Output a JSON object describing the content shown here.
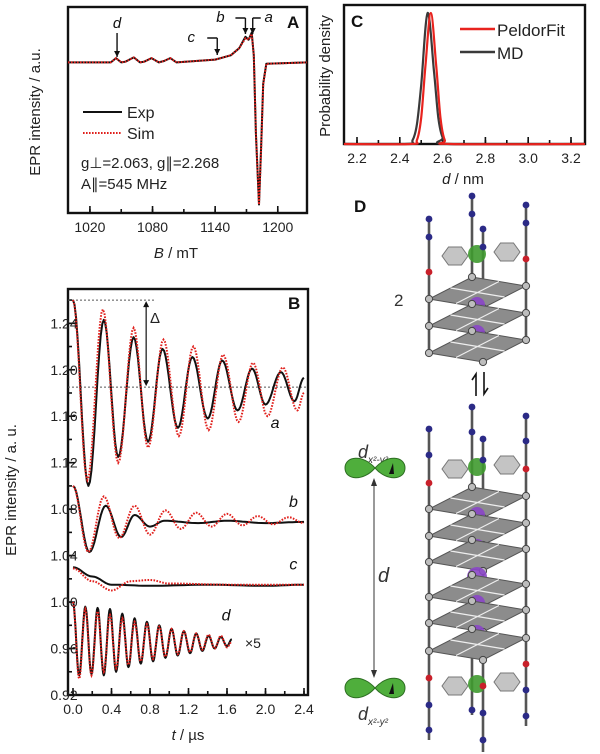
{
  "chart_data": [
    {
      "panel": "A",
      "type": "line",
      "xlabel_var": "B",
      "xlabel_unit": " / mT",
      "ylabel": "EPR intensity / a.u.",
      "xlim": [
        999,
        1228
      ],
      "ylim": [
        -1.06,
        0.39
      ],
      "xticks": [
        1020,
        1080,
        1140,
        1200
      ],
      "grid": false,
      "legend": "left",
      "legend_entries": [
        "Exp",
        "Sim"
      ],
      "annotations": [
        "g⊥=2.063, g∥=2.268",
        "A∥=545 MHz"
      ],
      "markers": [
        {
          "label": "d",
          "x": 1046
        },
        {
          "label": "c",
          "x": 1142
        },
        {
          "label": "b",
          "x": 1169
        },
        {
          "label": "a",
          "x": 1176
        }
      ],
      "series": [
        {
          "name": "Exp",
          "color": "#111111",
          "x": [
            999,
            1040,
            1045,
            1050,
            1054,
            1062,
            1068,
            1072,
            1079,
            1086,
            1091,
            1097,
            1103,
            1140,
            1155,
            1163,
            1169,
            1172,
            1175,
            1177,
            1179,
            1182,
            1184,
            1186,
            1189,
            1228
          ],
          "y": [
            0,
            0,
            0.03,
            0,
            0.005,
            0.035,
            0,
            0.005,
            0.03,
            0,
            0.01,
            0.03,
            0,
            0.02,
            0.05,
            0.1,
            0.18,
            0.16,
            0.21,
            0.05,
            -0.5,
            -1.0,
            -0.6,
            -0.15,
            -0.01,
            0
          ]
        },
        {
          "name": "Sim",
          "color": "#e0201c",
          "x": [
            999,
            1040,
            1045,
            1050,
            1054,
            1062,
            1068,
            1072,
            1079,
            1086,
            1091,
            1097,
            1103,
            1140,
            1155,
            1163,
            1169,
            1172,
            1175,
            1177,
            1179,
            1182,
            1184,
            1186,
            1189,
            1228
          ],
          "y": [
            0,
            0,
            0.03,
            0,
            0.005,
            0.035,
            0,
            0.005,
            0.03,
            0,
            0.01,
            0.03,
            0,
            0.02,
            0.05,
            0.1,
            0.17,
            0.16,
            0.2,
            0.05,
            -0.5,
            -1.0,
            -0.62,
            -0.16,
            -0.01,
            0
          ]
        }
      ]
    },
    {
      "panel": "B",
      "type": "line",
      "xlabel_var": "t",
      "xlabel_unit": " / µs",
      "ylabel": "EPR intensity / a. u.",
      "xlim": [
        0,
        2.4
      ],
      "ylim": [
        0.92,
        1.269
      ],
      "xticks": [
        0.0,
        0.4,
        0.8,
        1.2,
        1.6,
        2.0,
        2.4
      ],
      "yticks": [
        0.92,
        0.96,
        1.0,
        1.04,
        1.08,
        1.12,
        1.16,
        1.2,
        1.24
      ],
      "grid": false,
      "reference_lines": [
        1.26,
        1.185
      ],
      "delta_label": "Δ",
      "scale_note": "×5",
      "series": [
        {
          "trace": "a",
          "kind": "Exp",
          "x": [
            0,
            0.16,
            0.32,
            0.47,
            0.63,
            0.78,
            0.93,
            1.09,
            1.24,
            1.4,
            1.55,
            1.71,
            1.86,
            2.0,
            2.16,
            2.3,
            2.4
          ],
          "y": [
            1.26,
            1.1,
            1.243,
            1.125,
            1.228,
            1.138,
            1.218,
            1.15,
            1.211,
            1.158,
            1.208,
            1.165,
            1.201,
            1.17,
            1.198,
            1.173,
            1.193
          ]
        },
        {
          "trace": "a",
          "kind": "Sim",
          "x": [
            0,
            0.15,
            0.31,
            0.47,
            0.63,
            0.78,
            0.94,
            1.1,
            1.25,
            1.41,
            1.56,
            1.72,
            1.87,
            2.02,
            2.18,
            2.33,
            2.4
          ],
          "y": [
            1.26,
            1.105,
            1.252,
            1.12,
            1.236,
            1.133,
            1.226,
            1.143,
            1.22,
            1.148,
            1.213,
            1.155,
            1.206,
            1.16,
            1.202,
            1.165,
            1.18
          ]
        },
        {
          "trace": "b",
          "kind": "Exp",
          "x": [
            0,
            0.17,
            0.34,
            0.5,
            0.64,
            0.8,
            0.95,
            1.3,
            1.6,
            2.0,
            2.4
          ],
          "y": [
            1.1,
            1.043,
            1.083,
            1.056,
            1.075,
            1.065,
            1.07,
            1.068,
            1.07,
            1.068,
            1.069
          ]
        },
        {
          "trace": "b",
          "kind": "Sim",
          "x": [
            0,
            0.16,
            0.32,
            0.48,
            0.64,
            0.8,
            0.96,
            1.12,
            1.28,
            1.44,
            1.6,
            1.76,
            1.92,
            2.08,
            2.24,
            2.4
          ],
          "y": [
            1.1,
            1.043,
            1.091,
            1.055,
            1.083,
            1.058,
            1.079,
            1.063,
            1.077,
            1.065,
            1.076,
            1.066,
            1.074,
            1.067,
            1.073,
            1.068
          ]
        },
        {
          "trace": "c",
          "kind": "Exp",
          "x": [
            0,
            0.2,
            0.4,
            0.8,
            1.4,
            2.0,
            2.4
          ],
          "y": [
            1.03,
            1.022,
            1.015,
            1.014,
            1.015,
            1.014,
            1.015
          ]
        },
        {
          "trace": "c",
          "kind": "Sim",
          "x": [
            0,
            0.2,
            0.4,
            0.6,
            0.8,
            1.0,
            1.6,
            2.4
          ],
          "y": [
            1.029,
            1.018,
            1.01,
            1.018,
            1.019,
            1.016,
            1.015,
            1.015
          ]
        },
        {
          "trace": "d",
          "kind": "Exp",
          "x": [
            0,
            0.064,
            0.128,
            0.192,
            0.256,
            0.32,
            0.384,
            0.448,
            0.512,
            0.576,
            0.64,
            0.704,
            0.768,
            0.832,
            0.896,
            0.96,
            1.024,
            1.088,
            1.152,
            1.216,
            1.28,
            1.344,
            1.408,
            1.472,
            1.536,
            1.6,
            1.65
          ],
          "y": [
            1.0,
            0.937,
            0.996,
            0.938,
            0.995,
            0.937,
            0.994,
            0.94,
            0.99,
            0.944,
            0.986,
            0.947,
            0.983,
            0.949,
            0.98,
            0.952,
            0.977,
            0.954,
            0.975,
            0.956,
            0.973,
            0.958,
            0.971,
            0.96,
            0.97,
            0.962,
            0.968
          ]
        },
        {
          "trace": "d",
          "kind": "Sim",
          "x": [
            0,
            0.064,
            0.128,
            0.192,
            0.256,
            0.32,
            0.384,
            0.448,
            0.512,
            0.576,
            0.64,
            0.704,
            0.768,
            0.832,
            0.896,
            0.96,
            1.024,
            1.088,
            1.152,
            1.216,
            1.28,
            1.344,
            1.408,
            1.472,
            1.536,
            1.6,
            1.65
          ],
          "y": [
            1.0,
            0.934,
            0.994,
            0.937,
            0.992,
            0.94,
            0.989,
            0.943,
            0.986,
            0.946,
            0.983,
            0.949,
            0.981,
            0.951,
            0.979,
            0.953,
            0.977,
            0.955,
            0.975,
            0.957,
            0.973,
            0.959,
            0.972,
            0.96,
            0.971,
            0.961,
            0.966
          ]
        }
      ],
      "trace_labels": [
        {
          "label": "a",
          "t": 2.1,
          "y": 1.15
        },
        {
          "label": "b",
          "t": 2.29,
          "y": 1.082
        },
        {
          "label": "c",
          "t": 2.29,
          "y": 1.028
        },
        {
          "label": "d",
          "t": 1.59,
          "y": 0.984
        }
      ]
    },
    {
      "panel": "C",
      "type": "line",
      "xlabel_var": "d",
      "xlabel_unit": " / nm",
      "ylabel": "Probability density",
      "xlim": [
        2.139,
        3.265
      ],
      "ylim": [
        0,
        1.06
      ],
      "xticks": [
        2.2,
        2.4,
        2.6,
        2.8,
        3.0,
        3.2
      ],
      "grid": false,
      "legend": "top-right",
      "series": [
        {
          "name": "PeldorFit",
          "color": "#e8231e",
          "x": [
            2.139,
            2.45,
            2.48,
            2.5,
            2.52,
            2.545,
            2.57,
            2.59,
            2.61,
            2.64,
            3.265
          ],
          "y": [
            0,
            0,
            0.03,
            0.2,
            0.6,
            1,
            0.6,
            0.2,
            0.03,
            0,
            0
          ]
        },
        {
          "name": "MD",
          "color": "#3a3a3a",
          "x": [
            2.139,
            2.43,
            2.46,
            2.48,
            2.5,
            2.53,
            2.56,
            2.58,
            2.6,
            2.63,
            3.265
          ],
          "y": [
            0,
            0,
            0.03,
            0.15,
            0.45,
            1,
            0.55,
            0.2,
            0.05,
            0,
            0
          ]
        }
      ]
    }
  ],
  "diagram": {
    "panel": "D",
    "compound_label": "2",
    "distance_label": "d",
    "orbital_label": {
      "main": "d",
      "sub": "x²-y²"
    },
    "colors": {
      "rod": "#555555",
      "plate": "#8c8c8c",
      "node": "#bdbdbd",
      "nitrogen": "#2b2a86",
      "oxygen": "#c8202a",
      "copper": "#3f9a2f",
      "potassium": "#8a45c8",
      "ring": "#c4c4c4"
    }
  }
}
